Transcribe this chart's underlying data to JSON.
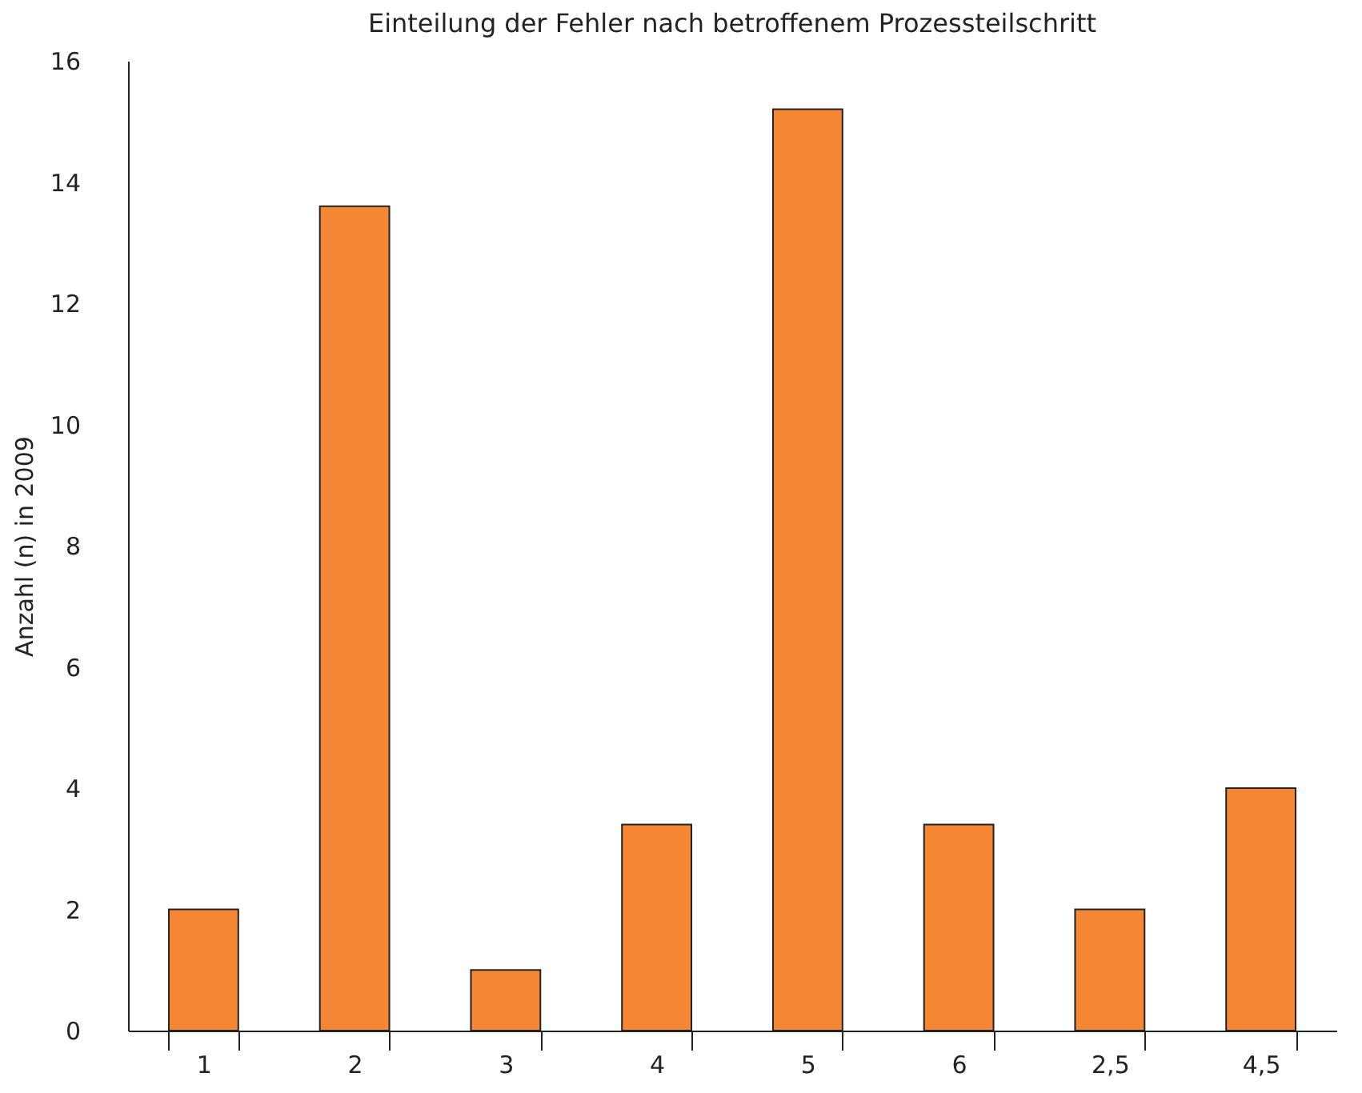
{
  "chart_data": {
    "type": "bar",
    "title": "Einteilung der Fehler nach betroffenem Prozessteilschritt",
    "ylabel": "Anzahl (n) in 2009",
    "categories": [
      "1",
      "2",
      "3",
      "4",
      "5",
      "6",
      "2,5",
      "4,5"
    ],
    "values": [
      2,
      13.6,
      1,
      3.4,
      15.2,
      3.4,
      2,
      4
    ],
    "color": "#f58634",
    "ylim": [
      0,
      16
    ],
    "yticks": [
      0,
      2,
      4,
      6,
      8,
      10,
      12,
      14,
      16
    ],
    "grid": false
  }
}
